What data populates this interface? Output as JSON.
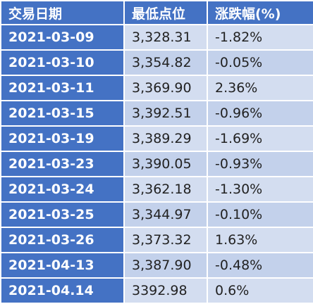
{
  "table": {
    "header": [
      "交易日期",
      "最低点位",
      "涨跌幅(%)"
    ],
    "rows": [
      [
        "2021-03-09",
        "3,328.31",
        "-1.82%"
      ],
      [
        "2021-03-10",
        "3,354.82",
        "-0.05%"
      ],
      [
        "2021-03-11",
        "3,369.90",
        "2.36%"
      ],
      [
        "2021-03-15",
        "3,392.51",
        "-0.96%"
      ],
      [
        "2021-03-19",
        "3,389.29",
        "-1.69%"
      ],
      [
        "2021-03-23",
        "3,390.05",
        "-0.93%"
      ],
      [
        "2021-03-24",
        "3,362.18",
        "-1.30%"
      ],
      [
        "2021-03-25",
        "3,344.97",
        "-0.10%"
      ],
      [
        "2021-03-26",
        "3,373.32",
        "1.63%"
      ],
      [
        "2021-04-13",
        "3,387.90",
        "-0.48%"
      ],
      [
        "2021-04.14",
        "3392.98",
        "0.6%"
      ]
    ]
  }
}
